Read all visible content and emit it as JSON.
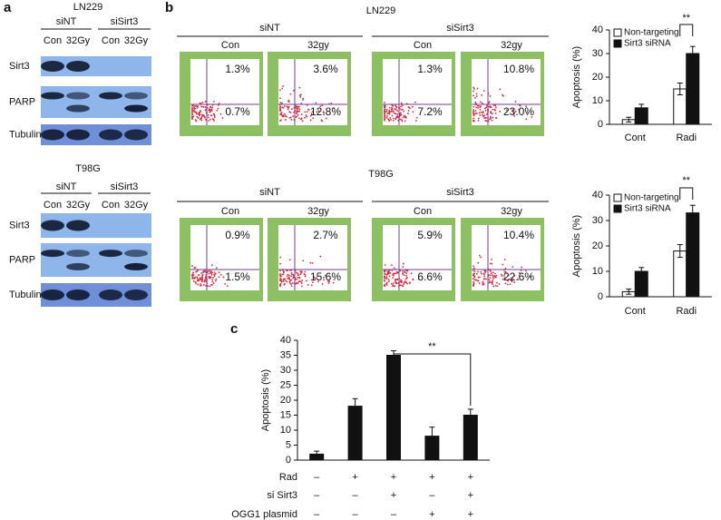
{
  "panel_a": {
    "letter": "a",
    "blots": [
      {
        "cell_line": "LN229",
        "groups": [
          "siNT",
          "siSirt3"
        ],
        "lanes": [
          "Con",
          "32Gy",
          "Con",
          "32Gy"
        ],
        "rows": [
          "Sirt3",
          "PARP",
          "Tubulin"
        ]
      },
      {
        "cell_line": "T98G",
        "groups": [
          "siNT",
          "siSirt3"
        ],
        "lanes": [
          "Con",
          "32Gy",
          "Con",
          "32Gy"
        ],
        "rows": [
          "Sirt3",
          "PARP",
          "Tubulin"
        ]
      }
    ]
  },
  "panel_b": {
    "letter": "b",
    "sets": [
      {
        "cell_line": "LN229",
        "groups": [
          "siNT",
          "siSirt3"
        ],
        "conditions": [
          "Con",
          "32gy",
          "Con",
          "32gy"
        ],
        "upper": [
          "1.3%",
          "3.6%",
          "1.3%",
          "10.8%"
        ],
        "lower": [
          "0.7%",
          "12.8%",
          "7.2%",
          "23.0%"
        ]
      },
      {
        "cell_line": "T98G",
        "groups": [
          "siNT",
          "siSirt3"
        ],
        "conditions": [
          "Con",
          "32gy",
          "Con",
          "32gy"
        ],
        "upper": [
          "0.9%",
          "2.7%",
          "5.9%",
          "10.4%"
        ],
        "lower": [
          "1.5%",
          "15.6%",
          "6.6%",
          "22.6%"
        ]
      }
    ]
  },
  "panel_c": {
    "letter": "c"
  },
  "chart_data": [
    {
      "type": "bar",
      "y_label": "Apoptosis (%)",
      "categories": [
        "Cont",
        "Radi"
      ],
      "series": [
        {
          "name": "Non-targeting",
          "color": "#ffffff",
          "values": [
            2,
            15
          ],
          "errors": [
            1,
            2.5
          ]
        },
        {
          "name": "Sirt3 siRNA",
          "color": "#111111",
          "values": [
            7,
            30
          ],
          "errors": [
            1.5,
            3
          ]
        }
      ],
      "ylim": [
        0,
        40
      ],
      "yticks": [
        0,
        10,
        20,
        30,
        40
      ],
      "annotation": "**"
    },
    {
      "type": "bar",
      "y_label": "Apoptosis (%)",
      "categories": [
        "Cont",
        "Radi"
      ],
      "series": [
        {
          "name": "Non-targeting",
          "color": "#ffffff",
          "values": [
            2,
            18
          ],
          "errors": [
            1,
            2.5
          ]
        },
        {
          "name": "Sirt3 siRNA",
          "color": "#111111",
          "values": [
            10,
            33
          ],
          "errors": [
            1.5,
            3
          ]
        }
      ],
      "ylim": [
        0,
        40
      ],
      "yticks": [
        0,
        10,
        20,
        30,
        40
      ],
      "annotation": "**"
    },
    {
      "type": "bar",
      "y_label": "Apoptosis (%)",
      "categories": [
        null,
        null,
        null,
        null,
        null
      ],
      "values": [
        2,
        18,
        35,
        8,
        15
      ],
      "errors": [
        1,
        2.5,
        1.5,
        3,
        2
      ],
      "color": "#111111",
      "ylim": [
        0,
        40
      ],
      "yticks": [
        0,
        5,
        10,
        15,
        20,
        25,
        30,
        35,
        40
      ],
      "annotation": "**",
      "conditions": [
        {
          "label": "Rad",
          "marks": [
            "–",
            "+",
            "+",
            "+",
            "+"
          ]
        },
        {
          "label": "si Sirt3",
          "marks": [
            "–",
            "–",
            "+",
            "–",
            "+"
          ]
        },
        {
          "label": "OGG1 plasmid",
          "marks": [
            "–",
            "–",
            "–",
            "+",
            "+"
          ]
        }
      ]
    }
  ]
}
